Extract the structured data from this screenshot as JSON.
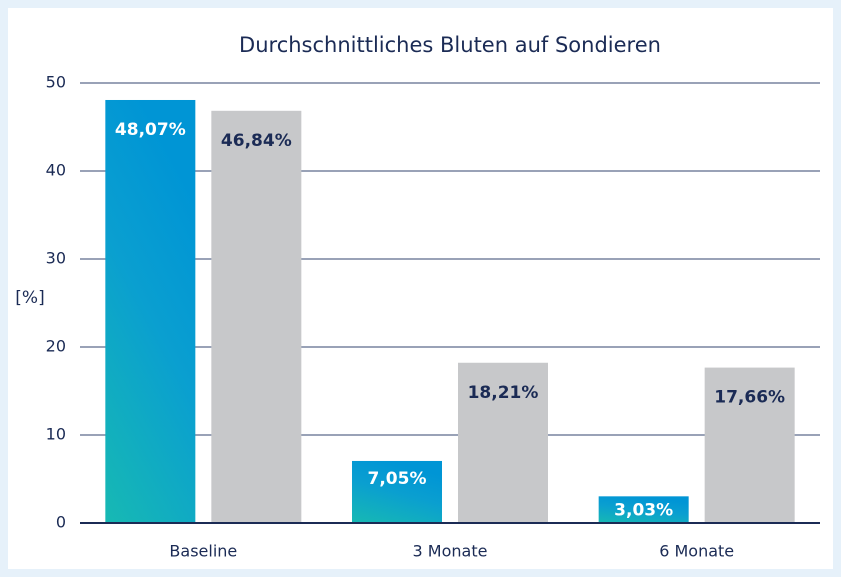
{
  "chart_data": {
    "type": "bar",
    "title": "Durchschnittliches Bluten auf Sondieren",
    "ylabel": "[%]",
    "categories": [
      "Baseline",
      "3 Monate",
      "6 Monate"
    ],
    "series": [
      {
        "color": "#0095d5",
        "values": [
          48.07,
          7.05,
          3.03
        ],
        "value_labels": [
          "48,07%",
          "7,05%",
          "3,03%"
        ]
      },
      {
        "color": "#c7c8ca",
        "values": [
          46.84,
          18.21,
          17.66
        ],
        "value_labels": [
          "46,84%",
          "18,21%",
          "17,66%"
        ]
      }
    ],
    "ylim": [
      0,
      50
    ],
    "yticks": [
      0,
      10,
      20,
      30,
      40,
      50
    ],
    "grid": true
  }
}
